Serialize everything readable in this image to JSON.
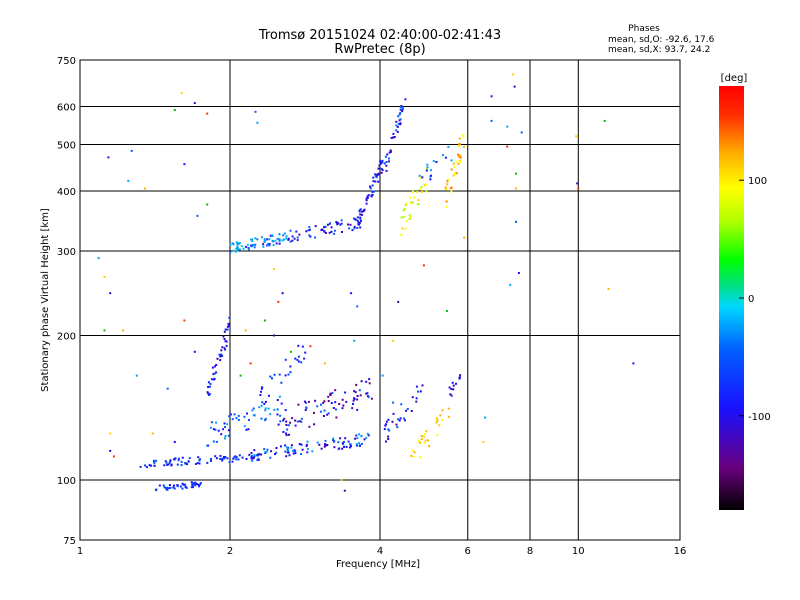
{
  "header": {
    "title_line1": "Tromsø 20151024 02:40:00-02:41:43",
    "title_line2": "RwPretec (8p)",
    "phases_title": "Phases",
    "phases_line_o": "mean, sd,O: -92.6, 17.6",
    "phases_line_x": "mean, sd,X:  93.7, 24.2"
  },
  "chart_data": {
    "type": "scatter",
    "title": "Tromsø 20151024 02:40:00-02:41:43",
    "subtitle": "RwPretec (8p)",
    "xlabel": "Frequency [MHz]",
    "ylabel": "Stationary phase Virtual Height [km]",
    "x_scale": "log",
    "y_scale": "log",
    "xlim": [
      1,
      16
    ],
    "ylim": [
      75,
      750
    ],
    "x_ticks": [
      1,
      2,
      4,
      6,
      8,
      10,
      16
    ],
    "y_ticks": [
      75,
      100,
      200,
      300,
      400,
      500,
      600,
      750
    ],
    "x_gridlines": [
      2,
      4,
      6,
      8,
      10
    ],
    "y_gridlines": [
      100,
      200,
      300,
      400,
      500,
      600
    ],
    "colorbar": {
      "label": "[deg]",
      "range": [
        -180,
        180
      ],
      "ticks": [
        100,
        0,
        -100
      ]
    },
    "series": [
      {
        "points": [
          [
            1.14,
            470
          ],
          [
            1.27,
            485
          ],
          [
            1.25,
            420
          ],
          [
            1.6,
            640
          ],
          [
            1.7,
            610
          ],
          [
            1.8,
            580
          ],
          [
            1.55,
            590
          ],
          [
            1.35,
            405
          ],
          [
            1.62,
            455
          ],
          [
            1.72,
            355
          ],
          [
            1.09,
            290
          ],
          [
            1.12,
            265
          ],
          [
            1.15,
            245
          ],
          [
            1.62,
            215
          ],
          [
            1.12,
            205
          ],
          [
            1.22,
            205
          ],
          [
            1.7,
            185
          ],
          [
            1.5,
            155
          ],
          [
            1.3,
            165
          ],
          [
            1.15,
            125
          ],
          [
            1.15,
            115
          ],
          [
            1.17,
            112
          ],
          [
            1.8,
            375
          ],
          [
            1.4,
            125
          ],
          [
            1.55,
            120
          ],
          [
            2.25,
            585
          ],
          [
            2.27,
            555
          ],
          [
            2.45,
            275
          ],
          [
            2.55,
            245
          ],
          [
            2.5,
            235
          ],
          [
            2.35,
            215
          ],
          [
            2.15,
            205
          ],
          [
            3.5,
            245
          ],
          [
            3.6,
            230
          ],
          [
            3.55,
            195
          ],
          [
            4.25,
            195
          ],
          [
            4.35,
            235
          ],
          [
            4.9,
            280
          ],
          [
            5.45,
            225
          ],
          [
            5.9,
            320
          ],
          [
            6.7,
            630
          ],
          [
            6.7,
            560
          ],
          [
            7.2,
            545
          ],
          [
            7.4,
            700
          ],
          [
            7.45,
            660
          ],
          [
            7.2,
            495
          ],
          [
            7.5,
            435
          ],
          [
            7.5,
            405
          ],
          [
            7.6,
            270
          ],
          [
            7.7,
            530
          ],
          [
            7.3,
            255
          ],
          [
            9.9,
            520
          ],
          [
            9.95,
            415
          ],
          [
            10,
            405
          ],
          [
            11.3,
            560
          ],
          [
            11.5,
            250
          ],
          [
            12.9,
            175
          ],
          [
            7.5,
            345
          ],
          [
            6.5,
            135
          ],
          [
            6.45,
            120
          ],
          [
            2.45,
            200
          ],
          [
            2.9,
            190
          ],
          [
            2.65,
            185
          ],
          [
            3.1,
            175
          ],
          [
            3.6,
            140
          ],
          [
            4.25,
            145
          ],
          [
            4.05,
            165
          ],
          [
            3.35,
            100
          ],
          [
            3.4,
            95
          ],
          [
            2.2,
            175
          ],
          [
            2.1,
            165
          ]
        ]
      }
    ]
  }
}
